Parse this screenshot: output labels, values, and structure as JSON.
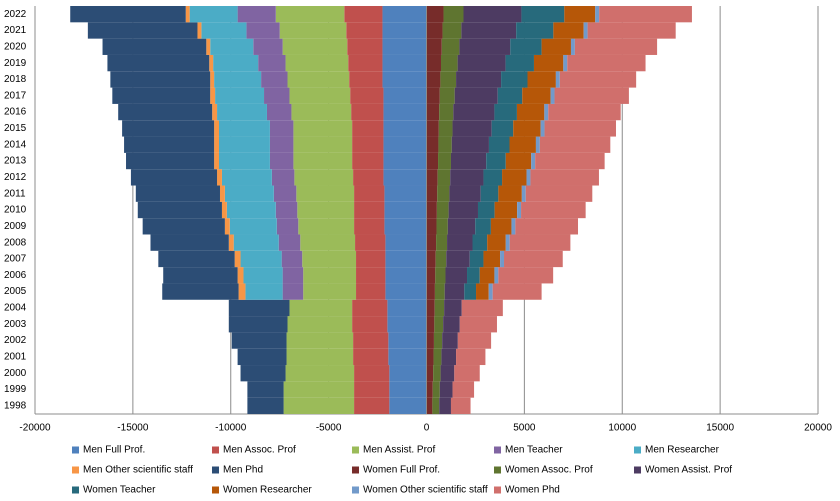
{
  "chart_data": {
    "type": "bar",
    "orientation": "horizontal",
    "stacked": true,
    "grid": true,
    "categories": [
      "1998",
      "1999",
      "2000",
      "2001",
      "2002",
      "2003",
      "2004",
      "2005",
      "2006",
      "2007",
      "2008",
      "2009",
      "2010",
      "2011",
      "2012",
      "2013",
      "2014",
      "2015",
      "2016",
      "2017",
      "2018",
      "2019",
      "2020",
      "2021",
      "2022"
    ],
    "xlim": [
      -20000,
      20000
    ],
    "xticks": [
      -20000,
      -15000,
      -10000,
      -5000,
      0,
      5000,
      10000,
      15000,
      20000
    ],
    "series": [
      {
        "name": "Men Full Prof.",
        "color": "#4f81bd",
        "values": [
          -1900,
          -1900,
          -1900,
          -1950,
          -1950,
          -2000,
          -2000,
          -2100,
          -2100,
          -2100,
          -2100,
          -2150,
          -2150,
          -2150,
          -2200,
          -2200,
          -2200,
          -2200,
          -2200,
          -2200,
          -2250,
          -2250,
          -2250,
          -2250,
          -2250
        ]
      },
      {
        "name": "Men Assoc. Prof",
        "color": "#c0504d",
        "values": [
          -1800,
          -1800,
          -1800,
          -1800,
          -1800,
          -1800,
          -1800,
          -1500,
          -1500,
          -1500,
          -1550,
          -1550,
          -1550,
          -1550,
          -1550,
          -1600,
          -1600,
          -1600,
          -1650,
          -1700,
          -1700,
          -1750,
          -1800,
          -1850,
          -1950
        ]
      },
      {
        "name": "Men Assist. Prof",
        "color": "#9bbb59",
        "values": [
          -3600,
          -3600,
          -3500,
          -3400,
          -3400,
          -3300,
          -3200,
          -2700,
          -2700,
          -2750,
          -2800,
          -2850,
          -2900,
          -2950,
          -3000,
          -3000,
          -3000,
          -3000,
          -3050,
          -3100,
          -3150,
          -3200,
          -3300,
          -3400,
          -3500
        ]
      },
      {
        "name": "Men Teacher",
        "color": "#8064a2",
        "values": [
          null,
          null,
          null,
          null,
          null,
          null,
          null,
          -1050,
          -1050,
          -1050,
          -1100,
          -1100,
          -1100,
          -1150,
          -1150,
          -1200,
          -1200,
          -1200,
          -1250,
          -1300,
          -1350,
          -1400,
          -1500,
          -1700,
          -1950
        ]
      },
      {
        "name": "Men Researcher",
        "color": "#4bacc6",
        "values": [
          null,
          null,
          null,
          null,
          null,
          null,
          null,
          -1900,
          -2000,
          -2100,
          -2300,
          -2400,
          -2500,
          -2500,
          -2550,
          -2600,
          -2600,
          -2600,
          -2550,
          -2500,
          -2400,
          -2300,
          -2200,
          -2300,
          -2450
        ]
      },
      {
        "name": "Men Other scientific staff",
        "color": "#f79646",
        "values": [
          null,
          null,
          null,
          null,
          null,
          null,
          null,
          -350,
          -300,
          -300,
          -250,
          -250,
          -250,
          -250,
          -250,
          -250,
          -250,
          -250,
          -250,
          -250,
          -200,
          -200,
          -200,
          -200,
          -200
        ]
      },
      {
        "name": "Men Phd",
        "color": "#2c4d75",
        "values": [
          -1850,
          -1850,
          -2300,
          -2500,
          -2800,
          -3000,
          -3100,
          -3900,
          -3800,
          -3900,
          -4000,
          -4200,
          -4300,
          -4300,
          -4400,
          -4500,
          -4600,
          -4700,
          -4800,
          -5000,
          -5100,
          -5200,
          -5300,
          -5600,
          -5900
        ]
      },
      {
        "name": "Women Full Prof.",
        "color": "#772c2a",
        "values": [
          300,
          320,
          340,
          360,
          380,
          400,
          420,
          430,
          450,
          470,
          490,
          510,
          530,
          550,
          570,
          590,
          610,
          630,
          650,
          680,
          710,
          740,
          780,
          820,
          870
        ]
      },
      {
        "name": "Women Assoc. Prof",
        "color": "#5f7530",
        "values": [
          350,
          360,
          380,
          400,
          420,
          450,
          480,
          500,
          520,
          540,
          560,
          580,
          600,
          620,
          640,
          660,
          680,
          700,
          720,
          760,
          800,
          850,
          900,
          960,
          1020
        ]
      },
      {
        "name": "Women Assist. Prof",
        "color": "#4d3b62",
        "values": [
          600,
          650,
          700,
          750,
          800,
          850,
          900,
          1000,
          1100,
          1200,
          1300,
          1400,
          1500,
          1600,
          1700,
          1800,
          1900,
          2000,
          2100,
          2200,
          2300,
          2450,
          2600,
          2800,
          2960
        ]
      },
      {
        "name": "Women Teacher",
        "color": "#276a7c",
        "values": [
          null,
          null,
          null,
          null,
          null,
          null,
          null,
          600,
          650,
          700,
          750,
          800,
          850,
          900,
          950,
          1000,
          1050,
          1100,
          1150,
          1250,
          1350,
          1450,
          1600,
          1900,
          2190
        ]
      },
      {
        "name": "Women Researcher",
        "color": "#b65708",
        "values": [
          null,
          null,
          null,
          null,
          null,
          null,
          null,
          650,
          750,
          850,
          950,
          1050,
          1150,
          1200,
          1250,
          1300,
          1350,
          1400,
          1400,
          1450,
          1450,
          1500,
          1500,
          1550,
          1580
        ]
      },
      {
        "name": "Women Other scientific staff",
        "color": "#729aca",
        "values": [
          null,
          null,
          null,
          null,
          null,
          null,
          null,
          200,
          200,
          200,
          200,
          200,
          200,
          200,
          200,
          200,
          200,
          200,
          200,
          200,
          200,
          200,
          200,
          200,
          200
        ]
      },
      {
        "name": "Women Phd",
        "color": "#d06f6c",
        "values": [
          1000,
          1100,
          1300,
          1500,
          1700,
          1900,
          2100,
          2500,
          2800,
          3000,
          3100,
          3200,
          3300,
          3400,
          3500,
          3550,
          3600,
          3650,
          3700,
          3800,
          3900,
          4000,
          4200,
          4500,
          4740
        ]
      }
    ]
  }
}
